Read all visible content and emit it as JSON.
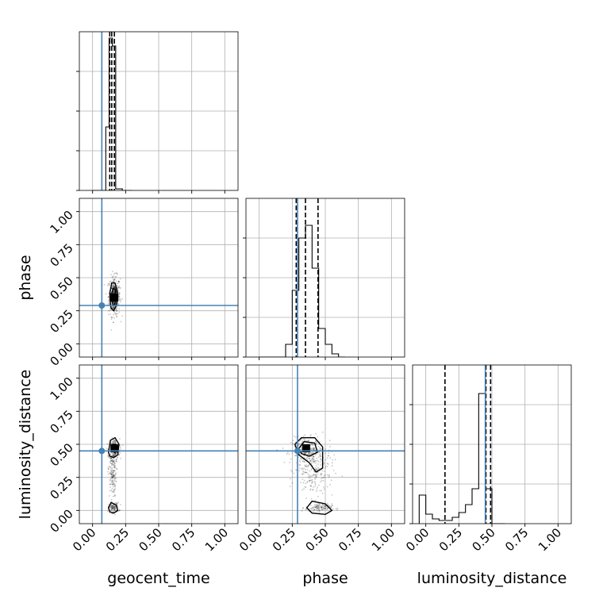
{
  "chart_data": {
    "type": "corner",
    "parameters": [
      "geocent_time",
      "phase",
      "luminosity_distance"
    ],
    "tick_values": [
      0.0,
      0.25,
      0.5,
      0.75,
      1.0
    ],
    "tick_labels": [
      "0.00",
      "0.25",
      "0.50",
      "0.75",
      "1.00"
    ],
    "ranges": {
      "geocent_time": [
        -0.1,
        1.1
      ],
      "phase": [
        -0.1,
        1.1
      ],
      "luminosity_distance": [
        -0.1,
        1.1
      ]
    },
    "truths": {
      "geocent_time": 0.07,
      "phase": 0.29,
      "luminosity_distance": 0.45
    },
    "quantiles": {
      "geocent_time": [
        0.13,
        0.145,
        0.165
      ],
      "phase": [
        0.28,
        0.35,
        0.445
      ],
      "luminosity_distance": [
        0.145,
        0.455,
        0.49
      ]
    },
    "histograms": {
      "geocent_time": {
        "edges": [
          0.0,
          0.025,
          0.05,
          0.075,
          0.1,
          0.125,
          0.15,
          0.175,
          0.2,
          0.225,
          0.25,
          0.275,
          0.3
        ],
        "counts": [
          0,
          0,
          0,
          0,
          0.4,
          0.96,
          0.91,
          0.01,
          0.01,
          0,
          0,
          0
        ]
      },
      "phase": {
        "edges": [
          0.0,
          0.05,
          0.1,
          0.15,
          0.2,
          0.25,
          0.3,
          0.35,
          0.4,
          0.45,
          0.5,
          0.55,
          0.6,
          0.65
        ],
        "counts": [
          0,
          0,
          0,
          0,
          0.08,
          0.42,
          0.75,
          0.83,
          0.56,
          0.18,
          0.08,
          0.02,
          0
        ]
      },
      "luminosity_distance": {
        "edges": [
          -0.05,
          0.0,
          0.05,
          0.1,
          0.15,
          0.2,
          0.25,
          0.3,
          0.35,
          0.4,
          0.45,
          0.5,
          0.55,
          0.6
        ],
        "counts": [
          0.18,
          0.06,
          0.03,
          0.02,
          0.02,
          0.04,
          0.07,
          0.12,
          0.22,
          0.82,
          0.22,
          0,
          0
        ]
      }
    },
    "scatter_clusters": {
      "phase_vs_geocent_time": [
        {
          "x": 0.165,
          "y": 0.36,
          "sx": 0.022,
          "sy": 0.075,
          "n": 360
        },
        {
          "x": 0.165,
          "y": 0.35,
          "sx": 0.01,
          "sy": 0.03,
          "n": 140
        }
      ],
      "luminosity_distance_vs_geocent_time": [
        {
          "x": 0.165,
          "y": 0.46,
          "sx": 0.02,
          "sy": 0.04,
          "n": 220
        },
        {
          "x": 0.15,
          "y": 0.28,
          "sx": 0.015,
          "sy": 0.09,
          "n": 160
        },
        {
          "x": 0.16,
          "y": 0.02,
          "sx": 0.02,
          "sy": 0.02,
          "n": 100
        }
      ],
      "luminosity_distance_vs_phase": [
        {
          "x": 0.36,
          "y": 0.45,
          "sx": 0.06,
          "sy": 0.05,
          "n": 260
        },
        {
          "x": 0.42,
          "y": 0.3,
          "sx": 0.07,
          "sy": 0.1,
          "n": 220
        },
        {
          "x": 0.45,
          "y": 0.02,
          "sx": 0.05,
          "sy": 0.015,
          "n": 110
        }
      ]
    },
    "contours": {
      "phase_vs_geocent_time": [
        [
          [
            0.135,
            0.3
          ],
          [
            0.13,
            0.38
          ],
          [
            0.145,
            0.46
          ],
          [
            0.17,
            0.46
          ],
          [
            0.19,
            0.38
          ],
          [
            0.18,
            0.29
          ],
          [
            0.16,
            0.25
          ],
          [
            0.14,
            0.27
          ]
        ],
        [
          [
            0.148,
            0.32
          ],
          [
            0.145,
            0.38
          ],
          [
            0.155,
            0.42
          ],
          [
            0.172,
            0.41
          ],
          [
            0.178,
            0.35
          ],
          [
            0.168,
            0.3
          ],
          [
            0.155,
            0.29
          ]
        ]
      ],
      "luminosity_distance_vs_geocent_time": [
        [
          [
            0.12,
            0.44
          ],
          [
            0.135,
            0.53
          ],
          [
            0.17,
            0.55
          ],
          [
            0.2,
            0.5
          ],
          [
            0.19,
            0.42
          ],
          [
            0.16,
            0.4
          ],
          [
            0.13,
            0.41
          ]
        ],
        [
          [
            0.14,
            0.46
          ],
          [
            0.15,
            0.5
          ],
          [
            0.175,
            0.5
          ],
          [
            0.18,
            0.46
          ],
          [
            0.165,
            0.44
          ]
        ],
        [
          [
            0.12,
            0.02
          ],
          [
            0.14,
            0.06
          ],
          [
            0.18,
            0.04
          ],
          [
            0.19,
            0.0
          ],
          [
            0.16,
            -0.02
          ],
          [
            0.13,
            -0.01
          ]
        ]
      ],
      "luminosity_distance_vs_phase": [
        [
          [
            0.27,
            0.5
          ],
          [
            0.32,
            0.55
          ],
          [
            0.42,
            0.55
          ],
          [
            0.48,
            0.48
          ],
          [
            0.48,
            0.32
          ],
          [
            0.43,
            0.29
          ],
          [
            0.38,
            0.36
          ],
          [
            0.3,
            0.42
          ]
        ],
        [
          [
            0.3,
            0.47
          ],
          [
            0.34,
            0.52
          ],
          [
            0.42,
            0.51
          ],
          [
            0.44,
            0.44
          ],
          [
            0.38,
            0.41
          ],
          [
            0.32,
            0.43
          ]
        ],
        [
          [
            0.36,
            0.02
          ],
          [
            0.4,
            0.07
          ],
          [
            0.5,
            0.05
          ],
          [
            0.55,
            0.0
          ],
          [
            0.5,
            -0.03
          ],
          [
            0.4,
            -0.02
          ]
        ]
      ]
    },
    "density_peaks": {
      "phase_vs_geocent_time": {
        "x": 0.165,
        "y": 0.35
      },
      "luminosity_distance_vs_geocent_time": {
        "x": 0.165,
        "y": 0.47
      },
      "luminosity_distance_vs_phase": {
        "x": 0.355,
        "y": 0.47
      }
    }
  }
}
